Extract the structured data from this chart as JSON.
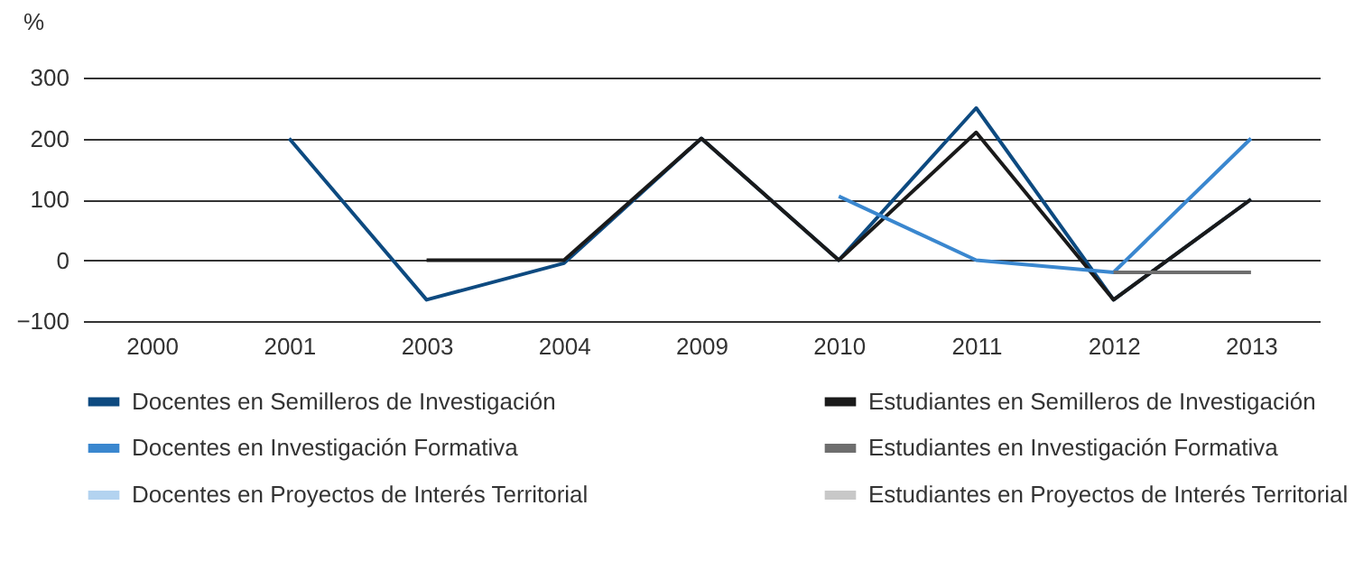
{
  "chart_data": {
    "type": "line",
    "ylabel": "%",
    "categories": [
      "2000",
      "2001",
      "2003",
      "2004",
      "2009",
      "2010",
      "2011",
      "2012",
      "2013"
    ],
    "series": [
      {
        "name": "Docentes en Semilleros de Investigación",
        "color": "#0d4a80",
        "values": [
          null,
          200,
          -65,
          -5,
          200,
          0,
          250,
          -65,
          100
        ]
      },
      {
        "name": "Estudiantes en Semilleros de Investigación",
        "color": "#1a1a1a",
        "values": [
          null,
          null,
          0,
          0,
          200,
          0,
          210,
          -65,
          100
        ]
      },
      {
        "name": "Docentes en Investigación Formativa",
        "color": "#3a87cf",
        "values": [
          null,
          null,
          null,
          null,
          null,
          105,
          0,
          -20,
          200
        ]
      },
      {
        "name": "Estudiantes en Investigación Formativa",
        "color": "#6e6e6e",
        "values": [
          null,
          null,
          null,
          null,
          null,
          null,
          null,
          -20,
          -20
        ]
      },
      {
        "name": "Docentes en Proyectos de Interés Territorial",
        "color": "#b3d3f0",
        "values": [
          null,
          null,
          null,
          null,
          null,
          null,
          null,
          null,
          null
        ]
      },
      {
        "name": "Estudiantes en Proyectos de Interés Territorial",
        "color": "#c8c8c8",
        "values": [
          null,
          null,
          null,
          null,
          null,
          null,
          null,
          null,
          null
        ]
      }
    ],
    "ylim": [
      -100,
      300
    ],
    "yticks": [
      -100,
      0,
      100,
      200,
      300
    ],
    "grid": "y",
    "legend": "bottom"
  }
}
